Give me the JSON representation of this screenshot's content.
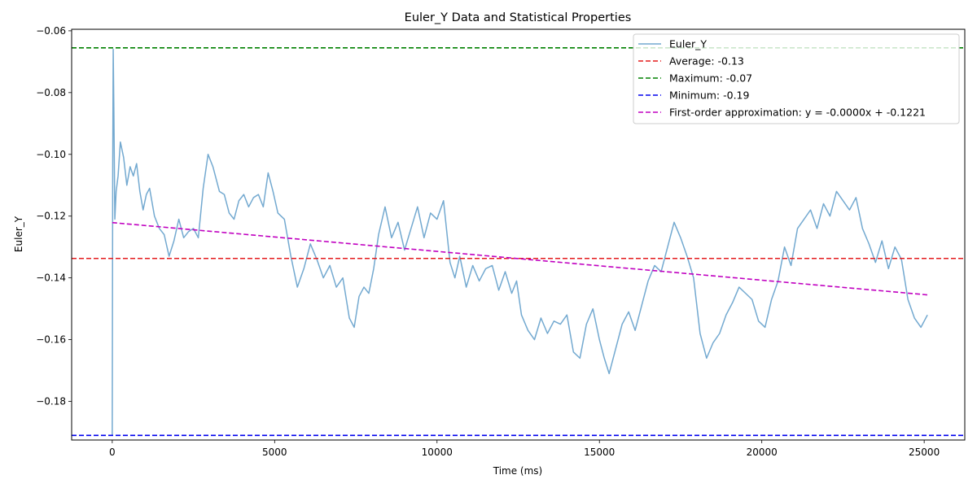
{
  "chart_data": {
    "type": "line",
    "title": "Euler_Y Data and Statistical Properties",
    "xlabel": "Time (ms)",
    "ylabel": "Euler_Y",
    "xlim": [
      -1250,
      26250
    ],
    "ylim": [
      -0.1925,
      -0.0595
    ],
    "xticks": [
      0,
      5000,
      10000,
      15000,
      20000,
      25000
    ],
    "xtick_labels": [
      "0",
      "5000",
      "10000",
      "15000",
      "20000",
      "25000"
    ],
    "yticks": [
      -0.18,
      -0.16,
      -0.14,
      -0.12,
      -0.1,
      -0.08,
      -0.06
    ],
    "ytick_labels": [
      "−0.18",
      "−0.16",
      "−0.14",
      "−0.12",
      "−0.10",
      "−0.08",
      "−0.06"
    ],
    "grid": false,
    "legend_position": "top-right",
    "colors": {
      "data": "#73a9d0",
      "average": "#e41a1c",
      "maximum": "#008000",
      "minimum": "#0000ee",
      "fit": "#c000c0"
    },
    "series": [
      {
        "name": "Euler_Y",
        "style": "solid",
        "x": [
          0,
          15,
          30,
          50,
          80,
          120,
          180,
          250,
          350,
          450,
          550,
          650,
          750,
          850,
          950,
          1050,
          1150,
          1300,
          1450,
          1600,
          1750,
          1900,
          2050,
          2200,
          2350,
          2500,
          2650,
          2800,
          2950,
          3100,
          3300,
          3450,
          3600,
          3750,
          3900,
          4050,
          4200,
          4350,
          4500,
          4650,
          4800,
          4950,
          5100,
          5300,
          5500,
          5700,
          5900,
          6100,
          6300,
          6500,
          6700,
          6900,
          7100,
          7300,
          7450,
          7600,
          7750,
          7900,
          8050,
          8200,
          8400,
          8600,
          8800,
          9000,
          9200,
          9400,
          9600,
          9800,
          10000,
          10200,
          10400,
          10550,
          10700,
          10900,
          11100,
          11300,
          11500,
          11700,
          11900,
          12100,
          12300,
          12450,
          12600,
          12800,
          13000,
          13200,
          13400,
          13600,
          13800,
          14000,
          14200,
          14400,
          14600,
          14800,
          15000,
          15150,
          15300,
          15500,
          15700,
          15900,
          16100,
          16300,
          16500,
          16700,
          16900,
          17100,
          17300,
          17500,
          17700,
          17900,
          18100,
          18300,
          18500,
          18700,
          18900,
          19100,
          19300,
          19500,
          19700,
          19900,
          20100,
          20300,
          20500,
          20700,
          20900,
          21100,
          21300,
          21500,
          21700,
          21900,
          22100,
          22300,
          22500,
          22700,
          22900,
          23100,
          23300,
          23500,
          23700,
          23900,
          24100,
          24300,
          24500,
          24700,
          24900,
          25000,
          25100
        ],
        "y": [
          -0.191,
          -0.103,
          -0.066,
          -0.086,
          -0.121,
          -0.112,
          -0.107,
          -0.096,
          -0.101,
          -0.11,
          -0.104,
          -0.107,
          -0.103,
          -0.112,
          -0.118,
          -0.113,
          -0.111,
          -0.12,
          -0.124,
          -0.126,
          -0.133,
          -0.128,
          -0.121,
          -0.127,
          -0.125,
          -0.124,
          -0.127,
          -0.111,
          -0.1,
          -0.104,
          -0.112,
          -0.113,
          -0.119,
          -0.121,
          -0.115,
          -0.113,
          -0.117,
          -0.114,
          -0.113,
          -0.117,
          -0.106,
          -0.112,
          -0.119,
          -0.121,
          -0.133,
          -0.143,
          -0.137,
          -0.129,
          -0.134,
          -0.14,
          -0.136,
          -0.143,
          -0.14,
          -0.153,
          -0.156,
          -0.146,
          -0.143,
          -0.145,
          -0.137,
          -0.126,
          -0.117,
          -0.127,
          -0.122,
          -0.131,
          -0.124,
          -0.117,
          -0.127,
          -0.119,
          -0.121,
          -0.115,
          -0.135,
          -0.14,
          -0.133,
          -0.143,
          -0.136,
          -0.141,
          -0.137,
          -0.136,
          -0.144,
          -0.138,
          -0.145,
          -0.141,
          -0.152,
          -0.157,
          -0.16,
          -0.153,
          -0.158,
          -0.154,
          -0.155,
          -0.152,
          -0.164,
          -0.166,
          -0.155,
          -0.15,
          -0.16,
          -0.166,
          -0.171,
          -0.163,
          -0.155,
          -0.151,
          -0.157,
          -0.149,
          -0.141,
          -0.136,
          -0.138,
          -0.13,
          -0.122,
          -0.127,
          -0.133,
          -0.14,
          -0.158,
          -0.166,
          -0.161,
          -0.158,
          -0.152,
          -0.148,
          -0.143,
          -0.145,
          -0.147,
          -0.154,
          -0.156,
          -0.147,
          -0.141,
          -0.13,
          -0.136,
          -0.124,
          -0.121,
          -0.118,
          -0.124,
          -0.116,
          -0.12,
          -0.112,
          -0.115,
          -0.118,
          -0.114,
          -0.124,
          -0.129,
          -0.135,
          -0.128,
          -0.137,
          -0.13,
          -0.134,
          -0.147,
          -0.153,
          -0.156,
          -0.154,
          -0.152
        ]
      },
      {
        "name": "Average: -0.13",
        "style": "dashed",
        "x": [
          -1250,
          26250
        ],
        "y": [
          -0.1337,
          -0.1337
        ]
      },
      {
        "name": "Maximum: -0.07",
        "style": "dashed",
        "x": [
          -1250,
          26250
        ],
        "y": [
          -0.0655,
          -0.0655
        ]
      },
      {
        "name": "Minimum: -0.19",
        "style": "dashed",
        "x": [
          -1250,
          26250
        ],
        "y": [
          -0.191,
          -0.191
        ]
      },
      {
        "name": "First-order approximation: y = -0.0000x + -0.1221",
        "style": "dashed",
        "x": [
          0,
          25100
        ],
        "y": [
          -0.1221,
          -0.1455
        ]
      }
    ]
  }
}
